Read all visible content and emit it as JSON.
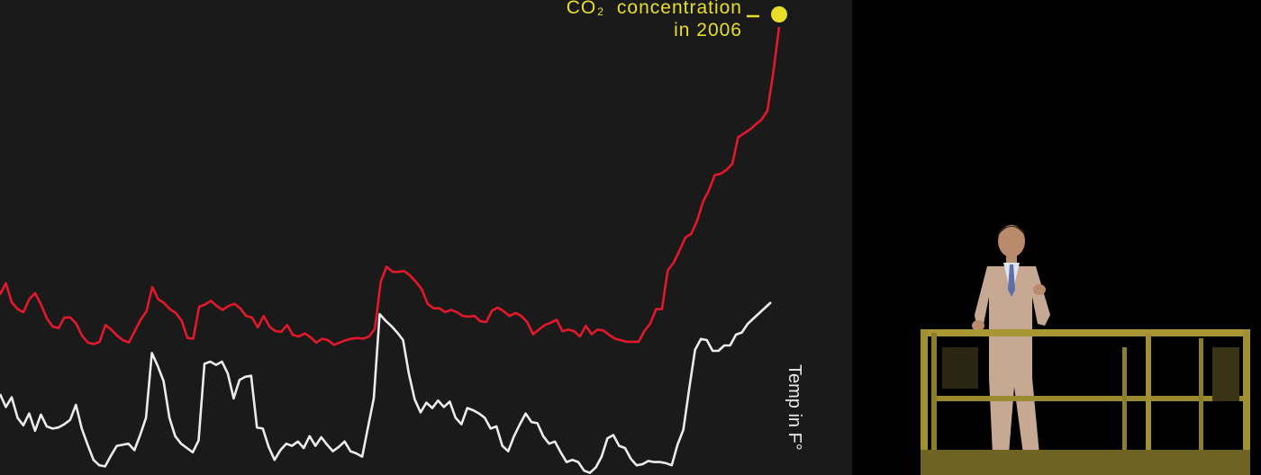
{
  "chart_data": {
    "type": "line",
    "title": "",
    "xlabel": "",
    "ylabel": "",
    "grid": false,
    "legend": "none",
    "series": [
      {
        "color": "#e3182a",
        "x": [
          0,
          1,
          2,
          3,
          4,
          5,
          6,
          7,
          8,
          9,
          10,
          11,
          12,
          13,
          14,
          15,
          16,
          17,
          18,
          19,
          20,
          21,
          22,
          23,
          24,
          25,
          26,
          27,
          28,
          29,
          30,
          31,
          32,
          33,
          34,
          35,
          36,
          37,
          38,
          39,
          40,
          41,
          42,
          43,
          44,
          45,
          46,
          47,
          48,
          49,
          50,
          51,
          52,
          53,
          54,
          55,
          56,
          57,
          58,
          59,
          60,
          61,
          62,
          63,
          64,
          65,
          66,
          67,
          68,
          69,
          70,
          71,
          72,
          73,
          74,
          75,
          76,
          77,
          78,
          79,
          80,
          81,
          82,
          83,
          84,
          85,
          86,
          87,
          88,
          89,
          90,
          91,
          92,
          93,
          94,
          95,
          96,
          97,
          98,
          99,
          100,
          101,
          102,
          103,
          104,
          105,
          106,
          107,
          108,
          109,
          110,
          111,
          112,
          113,
          114,
          115,
          116,
          117,
          118,
          119,
          120,
          121,
          122,
          123,
          124,
          125,
          126,
          127,
          128,
          129,
          130,
          131,
          132,
          133
        ],
        "values": [
          268,
          283,
          258,
          249,
          245,
          262,
          270,
          255,
          237,
          226,
          224,
          238,
          238,
          230,
          214,
          205,
          203,
          206,
          228,
          222,
          214,
          208,
          205,
          220,
          235,
          246,
          278,
          262,
          257,
          249,
          244,
          234,
          211,
          210,
          252,
          255,
          260,
          253,
          248,
          253,
          256,
          250,
          240,
          238,
          225,
          240,
          226,
          220,
          219,
          228,
          215,
          213,
          217,
          212,
          205,
          210,
          208,
          202,
          205,
          208,
          210,
          211,
          210,
          213,
          223,
          285,
          305,
          298,
          298,
          299,
          293,
          285,
          275,
          256,
          250,
          250,
          245,
          248,
          245,
          240,
          239,
          240,
          233,
          232,
          247,
          251,
          246,
          240,
          244,
          240,
          232,
          216,
          222,
          228,
          231,
          235,
          220,
          222,
          220,
          213,
          227,
          216,
          222,
          221,
          215,
          210,
          208,
          206,
          206,
          206,
          220,
          230,
          249,
          249,
          300,
          310,
          326,
          343,
          348,
          365,
          390,
          405,
          425,
          427,
          432,
          440,
          475,
          480,
          485,
          492,
          498,
          510,
          560,
          620
        ],
        "end_point": true
      },
      {
        "color": "#ececec",
        "x": [
          0,
          1,
          2,
          3,
          4,
          5,
          6,
          7,
          8,
          9,
          10,
          11,
          12,
          13,
          14,
          15,
          16,
          17,
          18,
          19,
          20,
          21,
          22,
          23,
          24,
          25,
          26,
          27,
          28,
          29,
          30,
          31,
          32,
          33,
          34,
          35,
          36,
          37,
          38,
          39,
          40,
          41,
          42,
          43,
          44,
          45,
          46,
          47,
          48,
          49,
          50,
          51,
          52,
          53,
          54,
          55,
          56,
          57,
          58,
          59,
          60,
          61,
          62,
          63,
          64,
          65,
          66,
          67,
          68,
          69,
          70,
          71,
          72,
          73,
          74,
          75,
          76,
          77,
          78,
          79,
          80,
          81,
          82,
          83,
          84,
          85,
          86,
          87,
          88,
          89,
          90,
          91,
          92,
          93,
          94,
          95,
          96,
          97,
          98,
          99,
          100,
          101,
          102,
          103,
          104,
          105,
          106,
          107,
          108,
          109,
          110,
          111,
          112,
          113,
          114,
          115,
          116,
          117,
          118,
          119,
          120,
          121,
          122,
          123,
          124,
          125,
          126,
          127,
          128,
          129,
          130,
          131,
          132
        ],
        "values": [
          0.05,
          -0.07,
          0.02,
          -0.17,
          -0.24,
          -0.13,
          -0.29,
          -0.14,
          -0.25,
          -0.27,
          -0.26,
          -0.23,
          -0.19,
          -0.05,
          -0.27,
          -0.42,
          -0.56,
          -0.61,
          -0.62,
          -0.52,
          -0.43,
          -0.42,
          -0.41,
          -0.47,
          -0.33,
          -0.17,
          0.43,
          0.31,
          0.17,
          -0.17,
          -0.34,
          -0.41,
          -0.45,
          -0.49,
          -0.38,
          0.33,
          0.35,
          0.32,
          0.35,
          0.24,
          0.01,
          0.18,
          0.21,
          0.22,
          -0.26,
          -0.27,
          -0.44,
          -0.56,
          -0.47,
          -0.41,
          -0.43,
          -0.39,
          -0.45,
          -0.34,
          -0.43,
          -0.35,
          -0.42,
          -0.48,
          -0.44,
          -0.39,
          -0.48,
          -0.5,
          -0.53,
          -0.26,
          0.01,
          0.79,
          0.73,
          0.68,
          0.62,
          0.55,
          0.24,
          0.0,
          -0.12,
          -0.03,
          -0.08,
          -0.01,
          -0.07,
          -0.02,
          -0.17,
          -0.23,
          -0.08,
          -0.1,
          -0.13,
          -0.17,
          -0.27,
          -0.25,
          -0.43,
          -0.48,
          -0.34,
          -0.23,
          -0.13,
          -0.21,
          -0.22,
          -0.34,
          -0.41,
          -0.39,
          -0.49,
          -0.58,
          -0.56,
          -0.58,
          -0.66,
          -0.68,
          -0.63,
          -0.53,
          -0.36,
          -0.33,
          -0.43,
          -0.45,
          -0.55,
          -0.61,
          -0.6,
          -0.57,
          -0.58,
          -0.58,
          -0.59,
          -0.61,
          -0.42,
          -0.28,
          0.1,
          0.46,
          0.56,
          0.55,
          0.45,
          0.45,
          0.5,
          0.5,
          0.6,
          0.62,
          0.7,
          0.75,
          0.8,
          0.85,
          0.9
        ],
        "end_point": false
      }
    ],
    "annotation": {
      "co2": "CO",
      "co2_sub": "2",
      "line1": "concentration",
      "line2": "in 2006",
      "color": "#e8df2a"
    },
    "side_label": "Temp in F°"
  }
}
